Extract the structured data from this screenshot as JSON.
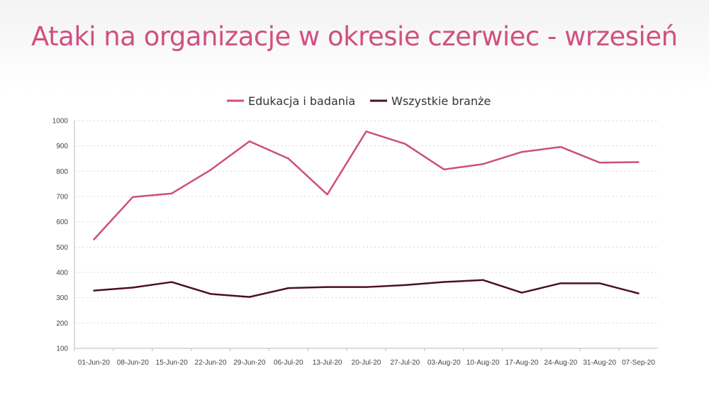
{
  "title": "Ataki na organizacje w okresie czerwiec - wrzesień",
  "chart_data": {
    "type": "line",
    "title": "",
    "categories": [
      "01-Jun-20",
      "08-Jun-20",
      "15-Jun-20",
      "22-Jun-20",
      "29-Jun-20",
      "06-Jul-20",
      "13-Jul-20",
      "20-Jul-20",
      "27-Jul-20",
      "03-Aug-20",
      "10-Aug-20",
      "17-Aug-20",
      "24-Aug-20",
      "31-Aug-20",
      "07-Sep-20"
    ],
    "series": [
      {
        "name": "Edukacja i badania",
        "color": "#cc4f7e",
        "values": [
          530,
          698,
          712,
          805,
          918,
          850,
          708,
          957,
          908,
          807,
          828,
          876,
          896,
          834,
          836
        ]
      },
      {
        "name": "Wszystkie branże",
        "color": "#4a0f2c",
        "values": [
          328,
          340,
          362,
          315,
          303,
          338,
          342,
          342,
          350,
          362,
          370,
          320,
          357,
          357,
          317
        ]
      }
    ],
    "yticks": [
      100,
      200,
      300,
      400,
      500,
      600,
      700,
      800,
      900,
      1000
    ],
    "ylim": [
      100,
      1000
    ],
    "grid": true,
    "legend": "top-center"
  }
}
